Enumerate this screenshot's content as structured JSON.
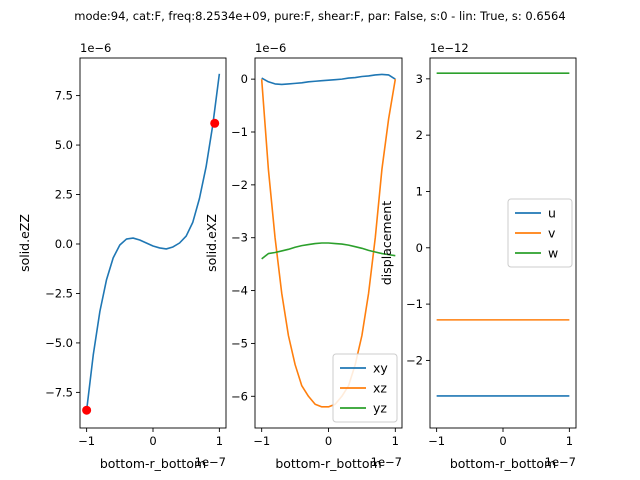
{
  "title": "mode:94, cat:F, freq:8.2534e+09, pure:F, shear:F, par: False, s:0 - lin: True, s: 0.6564",
  "colors": {
    "c0": "#1f77b4",
    "c1": "#ff7f0e",
    "c2": "#2ca02c",
    "marker": "#ff0000"
  },
  "chart_data": [
    {
      "type": "line",
      "xlabel": "bottom-r_bottom",
      "ylabel": "solid.eZZ",
      "x_offset_text": "1e−7",
      "y_offset_text": "1e−6",
      "xlim": [
        -1.1,
        1.1
      ],
      "ylim": [
        -9.3,
        9.4
      ],
      "xticks": [
        -1,
        0,
        1
      ],
      "xtick_labels": [
        "−1",
        "0",
        "1"
      ],
      "yticks": [
        -7.5,
        -5.0,
        -2.5,
        0.0,
        2.5,
        5.0,
        7.5
      ],
      "ytick_labels": [
        "−7.5",
        "−5.0",
        "−2.5",
        "0.0",
        "2.5",
        "5.0",
        "7.5"
      ],
      "series": [
        {
          "color": "#1f77b4",
          "x": [
            -1.0,
            -0.9,
            -0.8,
            -0.7,
            -0.6,
            -0.5,
            -0.4,
            -0.3,
            -0.2,
            -0.1,
            0.0,
            0.1,
            0.2,
            0.3,
            0.4,
            0.5,
            0.6,
            0.7,
            0.8,
            0.9,
            1.0
          ],
          "y": [
            -8.4,
            -5.6,
            -3.4,
            -1.8,
            -0.7,
            -0.05,
            0.25,
            0.3,
            0.2,
            0.05,
            -0.1,
            -0.2,
            -0.25,
            -0.15,
            0.05,
            0.4,
            1.1,
            2.3,
            3.9,
            6.0,
            8.6
          ]
        }
      ],
      "markers": [
        {
          "x": -1.0,
          "y": -8.4,
          "color": "#ff0000"
        },
        {
          "x": 0.93,
          "y": 6.1,
          "color": "#ff0000"
        }
      ]
    },
    {
      "type": "line",
      "xlabel": "bottom-r_bottom",
      "ylabel": "solid.eXZ",
      "x_offset_text": "1e−7",
      "y_offset_text": "1e−6",
      "xlim": [
        -1.1,
        1.1
      ],
      "ylim": [
        -6.6,
        0.4
      ],
      "xticks": [
        -1,
        0,
        1
      ],
      "xtick_labels": [
        "−1",
        "0",
        "1"
      ],
      "yticks": [
        -6,
        -5,
        -4,
        -3,
        -2,
        -1,
        0
      ],
      "ytick_labels": [
        "−6",
        "−5",
        "−4",
        "−3",
        "−2",
        "−1",
        "0"
      ],
      "legend": {
        "placement": "lower-right",
        "entries": [
          "xy",
          "xz",
          "yz"
        ]
      },
      "series": [
        {
          "name": "xy",
          "color": "#1f77b4",
          "x": [
            -1.0,
            -0.9,
            -0.8,
            -0.7,
            -0.6,
            -0.5,
            -0.4,
            -0.3,
            -0.2,
            -0.1,
            0.0,
            0.1,
            0.2,
            0.3,
            0.4,
            0.5,
            0.6,
            0.7,
            0.8,
            0.9,
            1.0
          ],
          "y": [
            0.02,
            -0.05,
            -0.09,
            -0.1,
            -0.09,
            -0.08,
            -0.07,
            -0.05,
            -0.04,
            -0.03,
            -0.02,
            -0.01,
            0.0,
            0.02,
            0.03,
            0.05,
            0.06,
            0.08,
            0.09,
            0.08,
            0.0
          ]
        },
        {
          "name": "xz",
          "color": "#ff7f0e",
          "x": [
            -1.0,
            -0.9,
            -0.8,
            -0.7,
            -0.6,
            -0.5,
            -0.4,
            -0.3,
            -0.2,
            -0.1,
            0.0,
            0.1,
            0.2,
            0.3,
            0.4,
            0.5,
            0.6,
            0.7,
            0.8,
            0.9,
            1.0
          ],
          "y": [
            0.0,
            -1.7,
            -3.0,
            -4.05,
            -4.85,
            -5.4,
            -5.8,
            -6.0,
            -6.15,
            -6.2,
            -6.2,
            -6.15,
            -6.0,
            -5.8,
            -5.4,
            -4.85,
            -4.05,
            -3.0,
            -1.7,
            -0.75,
            0.0
          ]
        },
        {
          "name": "yz",
          "color": "#2ca02c",
          "x": [
            -1.0,
            -0.9,
            -0.8,
            -0.7,
            -0.6,
            -0.5,
            -0.4,
            -0.3,
            -0.2,
            -0.1,
            0.0,
            0.1,
            0.2,
            0.3,
            0.4,
            0.5,
            0.6,
            0.7,
            0.8,
            0.9,
            1.0
          ],
          "y": [
            -3.4,
            -3.3,
            -3.28,
            -3.25,
            -3.22,
            -3.18,
            -3.15,
            -3.13,
            -3.11,
            -3.1,
            -3.1,
            -3.11,
            -3.12,
            -3.14,
            -3.17,
            -3.2,
            -3.24,
            -3.27,
            -3.3,
            -3.32,
            -3.34
          ]
        }
      ]
    },
    {
      "type": "line",
      "xlabel": "bottom-r_bottom",
      "ylabel": "displacement",
      "x_offset_text": "1e−7",
      "y_offset_text": "1e−12",
      "xlim": [
        -1.1,
        1.1
      ],
      "ylim": [
        -3.2,
        3.37
      ],
      "xticks": [
        -1,
        0,
        1
      ],
      "xtick_labels": [
        "−1",
        "0",
        "1"
      ],
      "yticks": [
        -2,
        -1,
        0,
        1,
        2,
        3
      ],
      "ytick_labels": [
        "−2",
        "−1",
        "0",
        "1",
        "2",
        "3"
      ],
      "legend": {
        "placement": "center-right",
        "entries": [
          "u",
          "v",
          "w"
        ]
      },
      "series": [
        {
          "name": "u",
          "color": "#1f77b4",
          "x": [
            -1,
            1
          ],
          "y": [
            -2.63,
            -2.63
          ]
        },
        {
          "name": "v",
          "color": "#ff7f0e",
          "x": [
            -1,
            1
          ],
          "y": [
            -1.28,
            -1.28
          ]
        },
        {
          "name": "w",
          "color": "#2ca02c",
          "x": [
            -1,
            1
          ],
          "y": [
            3.1,
            3.1
          ]
        }
      ]
    }
  ]
}
